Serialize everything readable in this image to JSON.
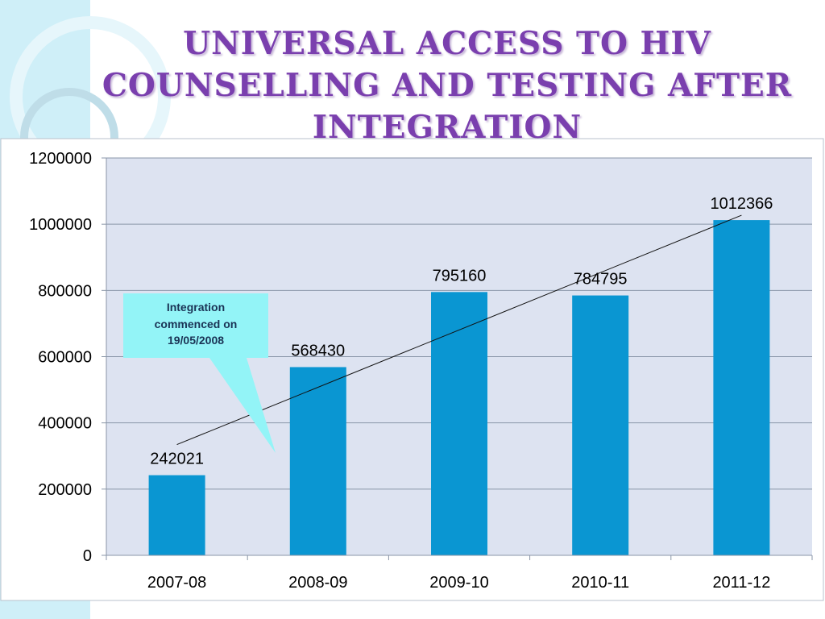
{
  "title": "Universal Access to HIV Counselling and Testing after Integration",
  "callout": {
    "lines": [
      "Integration",
      "commenced on",
      "19/05/2008"
    ]
  },
  "colors": {
    "bar": "#0a96d2",
    "plot_bg": "#dde3f1",
    "callout": "#93f4f7",
    "title": "#7a3fae"
  },
  "chart_data": {
    "type": "bar",
    "categories": [
      "2007-08",
      "2008-09",
      "2009-10",
      "2010-11",
      "2011-12"
    ],
    "values": [
      242021,
      568430,
      795160,
      784795,
      1012366
    ],
    "data_labels": [
      "242021",
      "568430",
      "795160",
      "784795",
      "1012366"
    ],
    "yticks": [
      0,
      200000,
      400000,
      600000,
      800000,
      1000000,
      1200000
    ],
    "ytick_labels": [
      "0",
      "200000",
      "400000",
      "600000",
      "800000",
      "1000000",
      "1200000"
    ],
    "ylim": [
      0,
      1200000
    ],
    "grid": true,
    "trendline": {
      "from": 242021,
      "to": 1012366
    }
  }
}
